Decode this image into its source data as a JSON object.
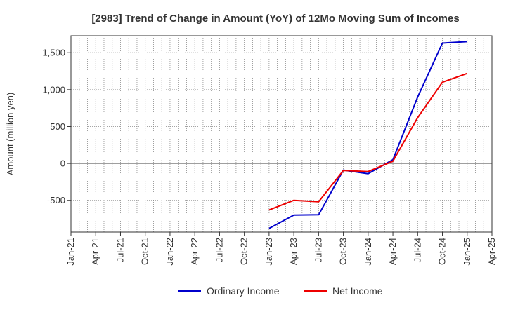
{
  "chart_data": {
    "type": "line",
    "title": "[2983]  Trend of Change in Amount (YoY) of 12Mo Moving Sum of Incomes",
    "ylabel": "Amount (million yen)",
    "xlabel": "",
    "x_ticks": [
      "Jan-21",
      "Apr-21",
      "Jul-21",
      "Oct-21",
      "Jan-22",
      "Apr-22",
      "Jul-22",
      "Oct-22",
      "Jan-23",
      "Apr-23",
      "Jul-23",
      "Oct-23",
      "Jan-24",
      "Apr-24",
      "Jul-24",
      "Oct-24",
      "Jan-25",
      "Apr-25"
    ],
    "y_ticks": [
      1500,
      1000,
      500,
      0,
      -500
    ],
    "y_tick_labels": [
      "1,500",
      "1,000",
      "500",
      "0",
      "-500"
    ],
    "ylim": [
      -930,
      1730
    ],
    "grid": true,
    "legend_position": "bottom",
    "series": [
      {
        "name": "Ordinary Income",
        "color": "#0000cc",
        "x": [
          "Jan-23",
          "Apr-23",
          "Jul-23",
          "Oct-23",
          "Jan-24",
          "Apr-24",
          "Jul-24",
          "Oct-24",
          "Jan-25"
        ],
        "values": [
          -880,
          -700,
          -695,
          -90,
          -140,
          50,
          900,
          1630,
          1650
        ]
      },
      {
        "name": "Net Income",
        "color": "#ee0000",
        "x": [
          "Jan-23",
          "Apr-23",
          "Jul-23",
          "Oct-23",
          "Jan-24",
          "Apr-24",
          "Jul-24",
          "Oct-24",
          "Jan-25"
        ],
        "values": [
          -630,
          -500,
          -520,
          -95,
          -110,
          30,
          620,
          1100,
          1220
        ]
      }
    ]
  }
}
